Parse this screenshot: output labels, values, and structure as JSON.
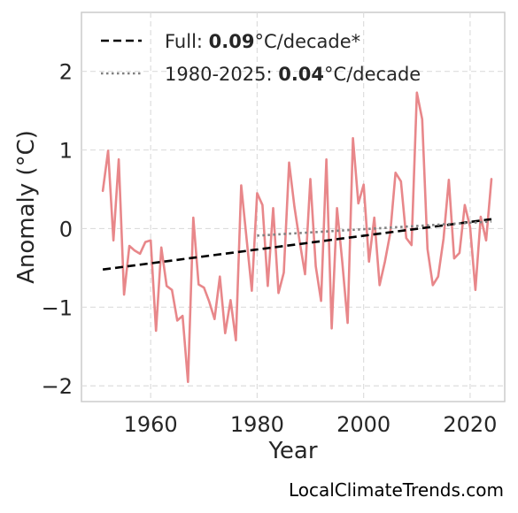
{
  "chart_data": {
    "type": "line",
    "xlabel": "Year",
    "ylabel": "Anomaly (°C)",
    "xlim": [
      1947,
      2026.5
    ],
    "ylim": [
      -2.2,
      2.75
    ],
    "x_ticks": [
      1960,
      1980,
      2000,
      2020
    ],
    "x_tick_labels": [
      "1960",
      "1980",
      "2000",
      "2020"
    ],
    "y_ticks": [
      -2,
      -1,
      0,
      1,
      2
    ],
    "y_tick_labels": [
      "−2",
      "−1",
      "0",
      "1",
      "2"
    ],
    "grid": true,
    "legend_position": "top-left",
    "series": [
      {
        "x": [
          1951,
          1952,
          1953,
          1954,
          1955,
          1956,
          1957,
          1958,
          1959,
          1960,
          1961,
          1962,
          1963,
          1964,
          1965,
          1966,
          1967,
          1968,
          1969,
          1970,
          1971,
          1972,
          1973,
          1974,
          1975,
          1976,
          1977,
          1978,
          1979,
          1980,
          1981,
          1982,
          1983,
          1984,
          1985,
          1986,
          1987,
          1988,
          1989,
          1990,
          1991,
          1992,
          1993,
          1994,
          1995,
          1996,
          1997,
          1998,
          1999,
          2000,
          2001,
          2002,
          2003,
          2004,
          2005,
          2006,
          2007,
          2008,
          2009,
          2010,
          2011,
          2012,
          2013,
          2014,
          2015,
          2016,
          2017,
          2018,
          2019,
          2020,
          2021,
          2022,
          2023,
          2024
        ],
        "values": [
          0.48,
          0.99,
          -0.15,
          0.88,
          -0.84,
          -0.22,
          -0.28,
          -0.32,
          -0.17,
          -0.15,
          -1.3,
          -0.24,
          -0.73,
          -0.78,
          -1.17,
          -1.11,
          -1.95,
          0.14,
          -0.71,
          -0.75,
          -0.93,
          -1.15,
          -0.61,
          -1.33,
          -0.91,
          -1.42,
          0.55,
          -0.12,
          -0.79,
          0.45,
          0.3,
          -0.73,
          0.26,
          -0.82,
          -0.56,
          0.84,
          0.28,
          -0.17,
          -0.58,
          0.63,
          -0.48,
          -0.92,
          0.88,
          -1.27,
          0.26,
          -0.43,
          -1.2,
          1.15,
          0.32,
          0.56,
          -0.42,
          0.14,
          -0.72,
          -0.42,
          -0.06,
          0.71,
          0.6,
          -0.12,
          -0.21,
          1.73,
          1.39,
          -0.26,
          -0.72,
          -0.61,
          -0.13,
          0.62,
          -0.38,
          -0.31,
          0.3,
          0.02,
          -0.78,
          0.15,
          -0.15,
          0.63
        ],
        "color": "#e8878a"
      },
      {
        "name": "Full: 0.09°C/decade*",
        "x": [
          1951,
          2024
        ],
        "values": [
          -0.52,
          0.12
        ],
        "color": "#000000",
        "style": "dashed"
      },
      {
        "name": "1980-2025: 0.04°C/decade",
        "x": [
          1980,
          2024
        ],
        "values": [
          -0.09,
          0.09
        ],
        "color": "#808080",
        "style": "dotted"
      }
    ],
    "legend": [
      {
        "prefix": "Full: ",
        "value": "0.09",
        "suffix": "°C/decade*"
      },
      {
        "prefix": "1980-2025: ",
        "value": "0.04",
        "suffix": "°C/decade"
      }
    ]
  },
  "credit": "LocalClimateTrends.com"
}
